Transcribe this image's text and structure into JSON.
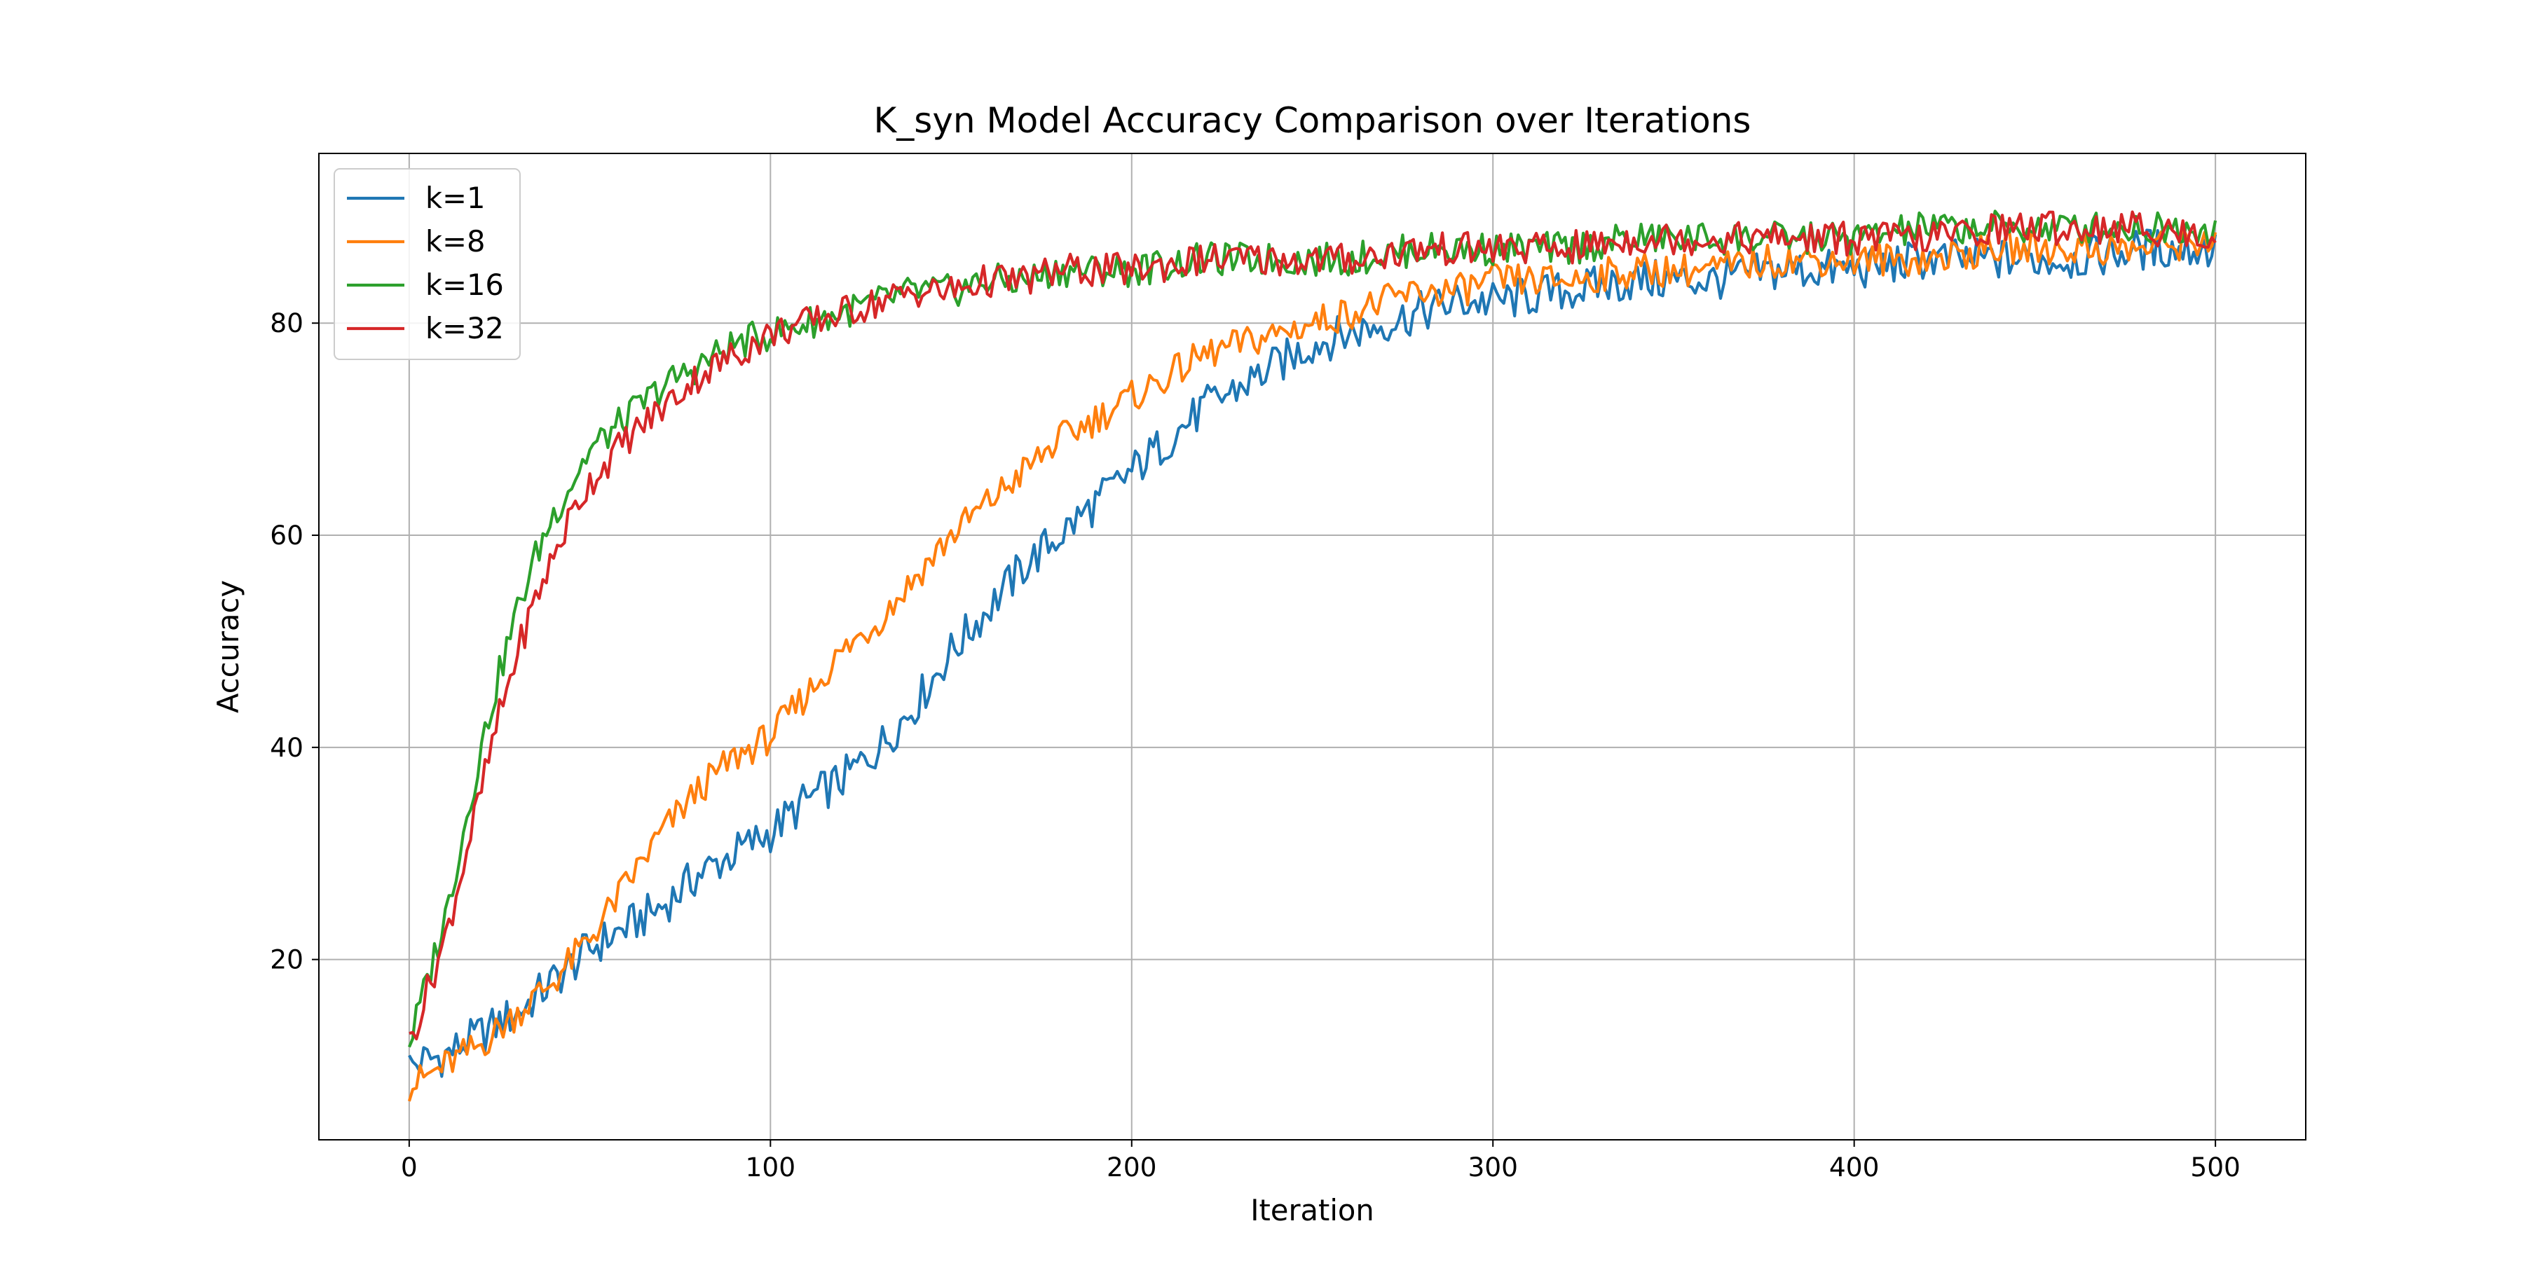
{
  "chart_data": {
    "type": "line",
    "title": "K_syn Model Accuracy Comparison over Iterations",
    "xlabel": "Iteration",
    "ylabel": "Accuracy",
    "xlim": [
      -25,
      525
    ],
    "ylim": [
      3,
      96
    ],
    "xticks": [
      0,
      100,
      200,
      300,
      400,
      500
    ],
    "yticks": [
      20,
      40,
      60,
      80
    ],
    "grid": true,
    "legend_position": "upper-left",
    "series": [
      {
        "name": "k=1",
        "color": "#1f77b4",
        "x": [
          0,
          10,
          20,
          30,
          40,
          50,
          60,
          70,
          80,
          90,
          100,
          110,
          120,
          130,
          140,
          150,
          160,
          170,
          180,
          190,
          200,
          210,
          220,
          230,
          240,
          250,
          260,
          270,
          280,
          290,
          300,
          320,
          340,
          360,
          380,
          400,
          420,
          440,
          460,
          480,
          500
        ],
        "y": [
          10,
          11,
          13,
          15,
          18,
          21,
          23,
          25,
          28,
          30,
          32,
          35,
          37,
          40,
          44,
          49,
          53,
          57,
          60,
          63,
          66,
          69,
          72,
          74,
          76,
          78,
          79,
          80,
          81,
          82,
          82,
          83,
          84,
          84,
          85,
          85,
          86,
          86,
          86,
          87,
          87
        ]
      },
      {
        "name": "k=8",
        "color": "#ff7f0e",
        "x": [
          0,
          10,
          20,
          30,
          40,
          50,
          60,
          70,
          80,
          90,
          100,
          110,
          120,
          130,
          140,
          150,
          160,
          170,
          180,
          190,
          200,
          210,
          220,
          230,
          240,
          250,
          260,
          270,
          280,
          290,
          300,
          320,
          340,
          360,
          380,
          400,
          420,
          440,
          460,
          480,
          500
        ],
        "y": [
          8,
          10,
          12,
          15,
          18,
          22,
          27,
          32,
          36,
          39,
          41,
          45,
          49,
          52,
          56,
          60,
          63,
          66,
          69,
          71,
          73,
          75,
          77,
          78,
          79,
          80,
          81,
          82,
          83,
          83,
          84,
          84,
          85,
          85,
          86,
          86,
          86,
          87,
          87,
          87,
          88
        ]
      },
      {
        "name": "k=16",
        "color": "#2ca02c",
        "x": [
          0,
          5,
          10,
          15,
          20,
          25,
          30,
          35,
          40,
          45,
          50,
          60,
          70,
          80,
          90,
          100,
          110,
          120,
          130,
          140,
          150,
          160,
          170,
          180,
          190,
          200,
          220,
          240,
          260,
          280,
          300,
          320,
          340,
          360,
          380,
          400,
          420,
          440,
          460,
          480,
          500
        ],
        "y": [
          12,
          18,
          24,
          32,
          40,
          47,
          53,
          58,
          62,
          65,
          68,
          71,
          74,
          76,
          78,
          79,
          80,
          81,
          82,
          83,
          83,
          84,
          84,
          85,
          85,
          85,
          86,
          86,
          86,
          87,
          87,
          87,
          88,
          88,
          88,
          88,
          89,
          89,
          89,
          89,
          89
        ]
      },
      {
        "name": "k=32",
        "color": "#d62728",
        "x": [
          0,
          5,
          10,
          15,
          20,
          25,
          30,
          35,
          40,
          45,
          50,
          60,
          70,
          80,
          90,
          100,
          110,
          120,
          130,
          140,
          150,
          160,
          170,
          180,
          190,
          200,
          220,
          240,
          260,
          280,
          300,
          320,
          340,
          360,
          380,
          400,
          420,
          440,
          460,
          480,
          500
        ],
        "y": [
          12,
          17,
          22,
          29,
          36,
          43,
          49,
          54,
          58,
          62,
          65,
          69,
          72,
          75,
          77,
          79,
          80,
          81,
          82,
          83,
          83,
          84,
          84,
          85,
          85,
          85,
          86,
          86,
          86,
          87,
          87,
          87,
          88,
          88,
          88,
          88,
          88,
          89,
          89,
          89,
          88
        ]
      }
    ]
  }
}
